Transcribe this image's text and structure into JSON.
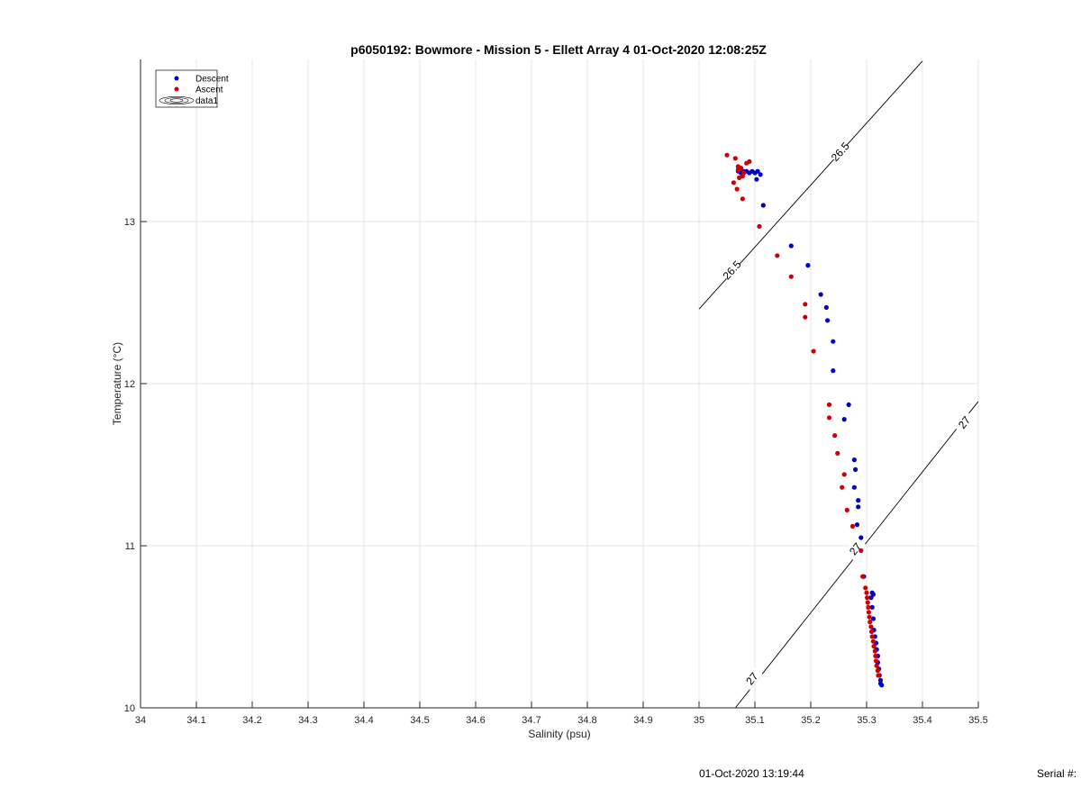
{
  "chart_data": {
    "type": "scatter",
    "title": "p6050192: Bowmore - Mission 5 - Ellett Array 4 01-Oct-2020 12:08:25Z",
    "xlabel": "Salinity (psu)",
    "ylabel": "Temperature (°C)",
    "xlim": [
      34,
      35.5
    ],
    "ylim": [
      10,
      14
    ],
    "xticks": [
      34,
      34.1,
      34.2,
      34.3,
      34.4,
      34.5,
      34.6,
      34.7,
      34.8,
      34.9,
      35,
      35.1,
      35.2,
      35.3,
      35.4,
      35.5
    ],
    "xtick_labels": [
      "34",
      "34.1",
      "34.2",
      "34.3",
      "34.4",
      "34.5",
      "34.6",
      "34.7",
      "34.8",
      "34.9",
      "35",
      "35.1",
      "35.2",
      "35.3",
      "35.4",
      "35.5"
    ],
    "yticks": [
      10,
      11,
      12,
      13
    ],
    "ytick_labels": [
      "10",
      "11",
      "12",
      "13"
    ],
    "grid": true,
    "legend_position": "top-left",
    "legend": [
      "Descent",
      "Ascent",
      "data1"
    ],
    "series": [
      {
        "name": "Descent",
        "color": "#0000cc",
        "marker": "dot",
        "points": [
          [
            35.07,
            13.31
          ],
          [
            35.075,
            13.3
          ],
          [
            35.08,
            13.31
          ],
          [
            35.085,
            13.31
          ],
          [
            35.09,
            13.3
          ],
          [
            35.095,
            13.31
          ],
          [
            35.1,
            13.3
          ],
          [
            35.105,
            13.31
          ],
          [
            35.11,
            13.29
          ],
          [
            35.103,
            13.26
          ],
          [
            35.115,
            13.1
          ],
          [
            35.165,
            12.85
          ],
          [
            35.195,
            12.73
          ],
          [
            35.218,
            12.55
          ],
          [
            35.228,
            12.47
          ],
          [
            35.23,
            12.39
          ],
          [
            35.24,
            12.26
          ],
          [
            35.24,
            12.08
          ],
          [
            35.268,
            11.87
          ],
          [
            35.26,
            11.78
          ],
          [
            35.278,
            11.53
          ],
          [
            35.28,
            11.47
          ],
          [
            35.278,
            11.36
          ],
          [
            35.285,
            11.28
          ],
          [
            35.285,
            11.24
          ],
          [
            35.283,
            11.13
          ],
          [
            35.29,
            11.05
          ],
          [
            35.295,
            10.81
          ],
          [
            35.31,
            10.71
          ],
          [
            35.312,
            10.7
          ],
          [
            35.308,
            10.68
          ],
          [
            35.31,
            10.62
          ],
          [
            35.312,
            10.55
          ],
          [
            35.313,
            10.48
          ],
          [
            35.315,
            10.44
          ],
          [
            35.317,
            10.4
          ],
          [
            35.318,
            10.36
          ],
          [
            35.32,
            10.32
          ],
          [
            35.32,
            10.28
          ],
          [
            35.322,
            10.24
          ],
          [
            35.323,
            10.2
          ],
          [
            35.325,
            10.17
          ],
          [
            35.325,
            10.15
          ],
          [
            35.327,
            10.14
          ]
        ]
      },
      {
        "name": "Ascent",
        "color": "#cc0000",
        "marker": "dot",
        "points": [
          [
            35.05,
            13.41
          ],
          [
            35.065,
            13.39
          ],
          [
            35.07,
            13.34
          ],
          [
            35.07,
            13.32
          ],
          [
            35.075,
            13.33
          ],
          [
            35.08,
            13.3
          ],
          [
            35.078,
            13.28
          ],
          [
            35.072,
            13.27
          ],
          [
            35.09,
            13.37
          ],
          [
            35.085,
            13.36
          ],
          [
            35.062,
            13.24
          ],
          [
            35.068,
            13.2
          ],
          [
            35.078,
            13.14
          ],
          [
            35.108,
            12.97
          ],
          [
            35.14,
            12.79
          ],
          [
            35.165,
            12.66
          ],
          [
            35.19,
            12.49
          ],
          [
            35.19,
            12.41
          ],
          [
            35.205,
            12.2
          ],
          [
            35.233,
            11.87
          ],
          [
            35.233,
            11.79
          ],
          [
            35.243,
            11.68
          ],
          [
            35.248,
            11.57
          ],
          [
            35.26,
            11.44
          ],
          [
            35.256,
            11.36
          ],
          [
            35.265,
            11.22
          ],
          [
            35.275,
            11.12
          ],
          [
            35.29,
            10.97
          ],
          [
            35.293,
            10.81
          ],
          [
            35.298,
            10.74
          ],
          [
            35.3,
            10.71
          ],
          [
            35.301,
            10.68
          ],
          [
            35.302,
            10.65
          ],
          [
            35.303,
            10.62
          ],
          [
            35.304,
            10.59
          ],
          [
            35.305,
            10.56
          ],
          [
            35.306,
            10.53
          ],
          [
            35.308,
            10.5
          ],
          [
            35.309,
            10.47
          ],
          [
            35.31,
            10.44
          ],
          [
            35.312,
            10.41
          ],
          [
            35.313,
            10.38
          ],
          [
            35.315,
            10.35
          ],
          [
            35.316,
            10.32
          ],
          [
            35.317,
            10.29
          ],
          [
            35.318,
            10.26
          ],
          [
            35.32,
            10.23
          ],
          [
            35.321,
            10.2
          ]
        ]
      }
    ],
    "density_contours": [
      {
        "label": "26.5",
        "points": [
          [
            35.0,
            12.46
          ],
          [
            35.4,
            13.99
          ]
        ],
        "label_positions": [
          [
            35.059,
            12.7
          ],
          [
            35.253,
            13.43
          ]
        ]
      },
      {
        "label": "27",
        "points": [
          [
            35.065,
            10.0
          ],
          [
            35.5,
            11.89
          ]
        ],
        "label_positions": [
          [
            35.095,
            10.18
          ],
          [
            35.28,
            10.98
          ],
          [
            35.475,
            11.76
          ]
        ]
      }
    ]
  },
  "footer": {
    "timestamp": "01-Oct-2020 13:19:44",
    "serial": "Serial #:"
  }
}
